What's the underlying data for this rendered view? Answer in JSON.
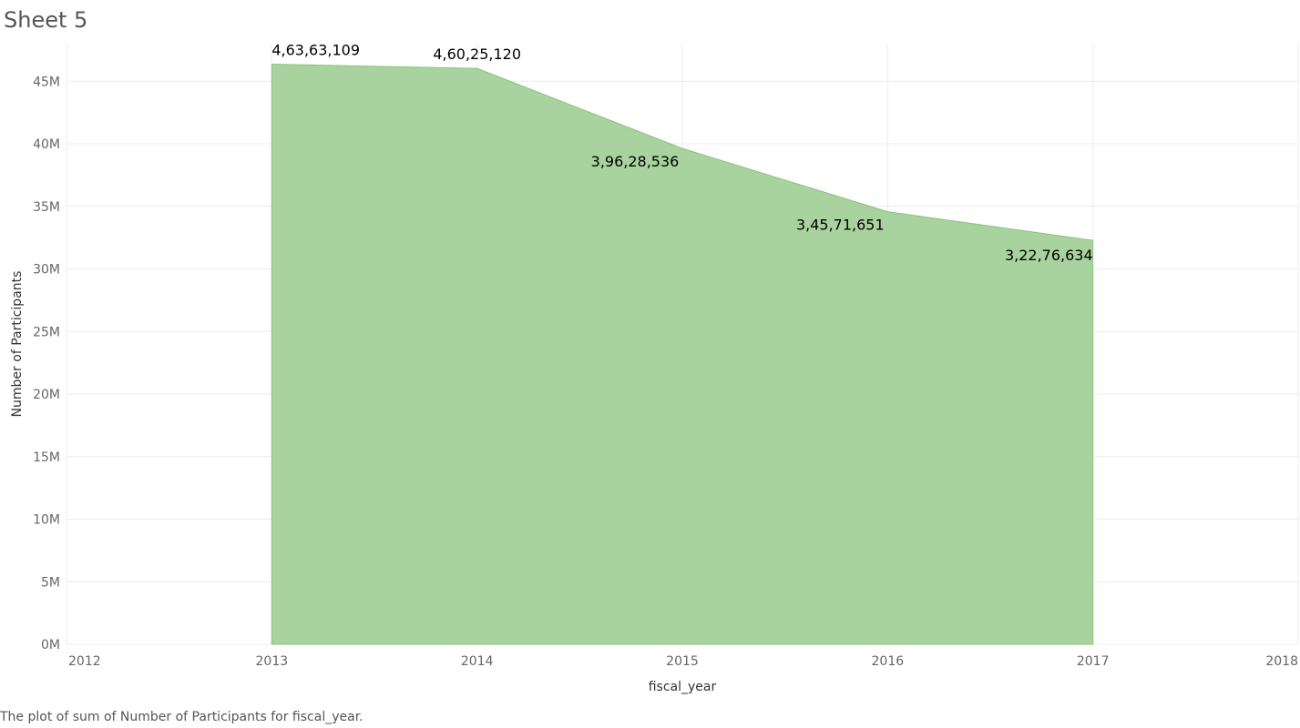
{
  "sheet": {
    "title": "Sheet 5"
  },
  "caption": "The plot of sum of Number of Participants for fiscal_year.",
  "chart_data": {
    "type": "area",
    "xlabel": "fiscal_year",
    "ylabel": "Number of Participants",
    "x": [
      2013,
      2014,
      2015,
      2016,
      2017
    ],
    "values": [
      46363109,
      46025120,
      39628536,
      34571651,
      32276634
    ],
    "data_labels": [
      "4,63,63,109",
      "4,60,25,120",
      "3,96,28,536",
      "3,45,71,651",
      "3,22,76,634"
    ],
    "xlim": [
      2012,
      2018
    ],
    "ylim": [
      0,
      48000000
    ],
    "x_ticks": [
      2012,
      2013,
      2014,
      2015,
      2016,
      2017,
      2018
    ],
    "y_ticks": [
      0,
      5000000,
      10000000,
      15000000,
      20000000,
      25000000,
      30000000,
      35000000,
      40000000,
      45000000
    ],
    "y_tick_labels": [
      "0M",
      "5M",
      "10M",
      "15M",
      "20M",
      "25M",
      "30M",
      "35M",
      "40M",
      "45M"
    ],
    "grid": true,
    "fill_color": "#a9d39e",
    "stroke_color": "#8cc27f"
  }
}
